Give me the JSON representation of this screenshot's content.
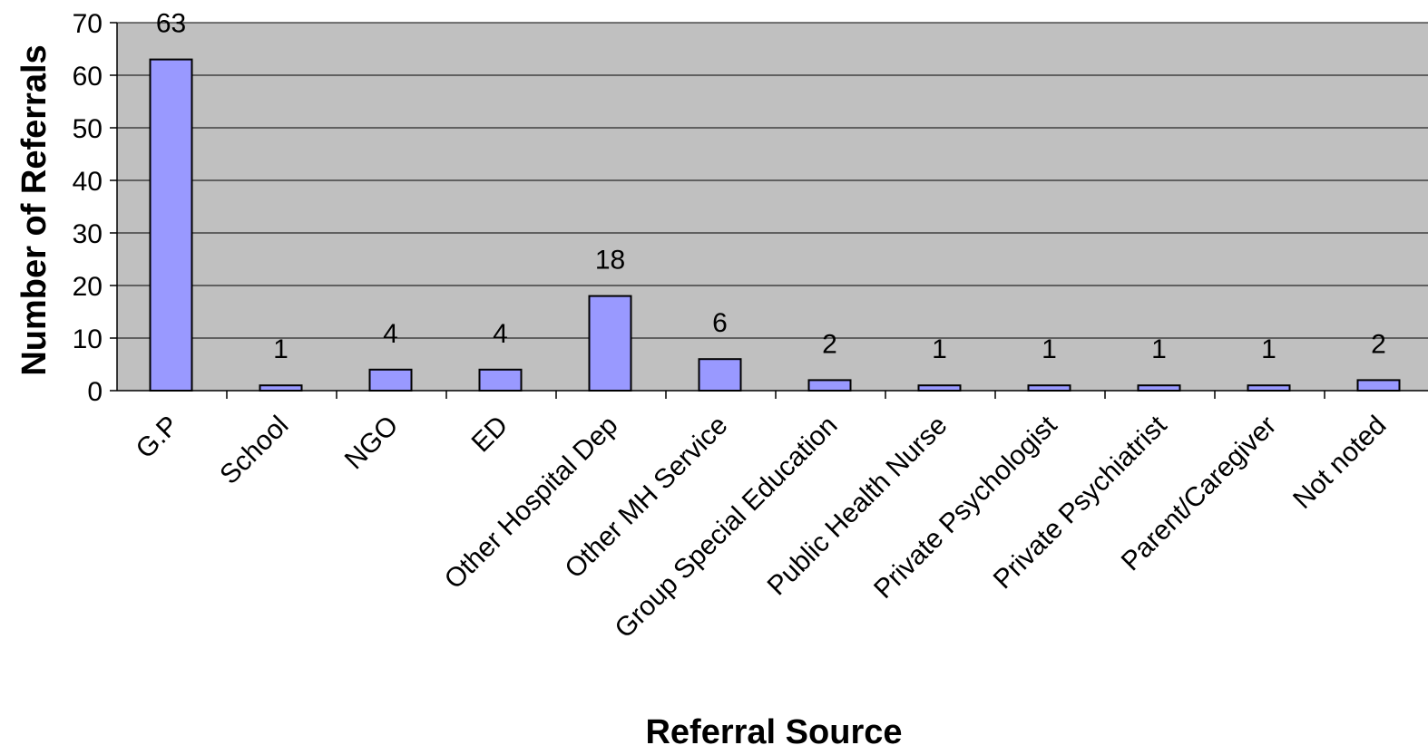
{
  "chart_data": {
    "type": "bar",
    "title": "",
    "xlabel": "Referral Source",
    "ylabel": "Number of Referrals",
    "ylim": [
      0,
      70
    ],
    "yticks": [
      0,
      10,
      20,
      30,
      40,
      50,
      60,
      70
    ],
    "grid": true,
    "legend": "none",
    "categories": [
      "G.P",
      "School",
      "NGO",
      "ED",
      "Other Hospital Dep",
      "Other MH Service",
      "Group Special Education",
      "Public Health Nurse",
      "Private Psychologist",
      "Private Psychiatrist",
      "Parent/Caregiver",
      "Not noted"
    ],
    "series": [
      {
        "values": [
          63,
          1,
          4,
          4,
          18,
          6,
          2,
          1,
          1,
          1,
          1,
          2
        ]
      }
    ],
    "data_labels": [
      "63",
      "1",
      "4",
      "4",
      "18",
      "6",
      "2",
      "1",
      "1",
      "1",
      "1",
      "2"
    ],
    "colors": {
      "bar_fill": "#9999ff",
      "bar_stroke": "#000000",
      "plot_background": "#c0c0c0",
      "gridline": "#000000"
    }
  }
}
